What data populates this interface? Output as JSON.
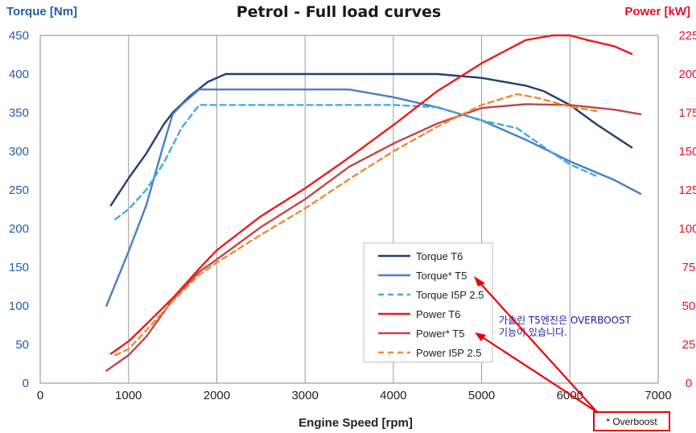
{
  "chart_data": {
    "type": "line",
    "title": "Petrol - Full load curves",
    "xlabel": "Engine Speed [rpm]",
    "ylabel_left": "Torque [Nm]",
    "ylabel_right": "Power [kW]",
    "xlim": [
      0,
      7000
    ],
    "ylim_left": [
      0,
      450
    ],
    "ylim_right": [
      0,
      225
    ],
    "x_ticks": [
      0,
      1000,
      2000,
      3000,
      4000,
      5000,
      6000,
      7000
    ],
    "y_left_ticks": [
      0,
      50,
      100,
      150,
      200,
      250,
      300,
      350,
      400,
      450
    ],
    "y_right_ticks": [
      0,
      25,
      50,
      75,
      100,
      125,
      150,
      175,
      200,
      225
    ],
    "grid": "vertical",
    "legend_position": "lower-center-right",
    "series": [
      {
        "name": "Torque T6",
        "axis": "left",
        "color": "#1f3f75",
        "dash": "solid",
        "x": [
          800,
          1000,
          1200,
          1400,
          1500,
          1700,
          1900,
          2100,
          3000,
          4000,
          4500,
          5000,
          5500,
          5700,
          6000,
          6300,
          6700
        ],
        "y": [
          230,
          265,
          297,
          335,
          350,
          372,
          390,
          400,
          400,
          400,
          400,
          395,
          385,
          378,
          360,
          335,
          305
        ]
      },
      {
        "name": "Torque* T5",
        "axis": "left",
        "color": "#4a7fc8",
        "dash": "solid",
        "x": [
          750,
          1000,
          1200,
          1400,
          1500,
          1600,
          1800,
          2000,
          3000,
          3500,
          4000,
          4500,
          5000,
          5500,
          6000,
          6500,
          6800
        ],
        "y": [
          100,
          170,
          230,
          310,
          348,
          360,
          380,
          380,
          380,
          380,
          370,
          357,
          340,
          315,
          287,
          263,
          245
        ]
      },
      {
        "name": "Torque I5P 2.5",
        "axis": "left",
        "color": "#44aadd",
        "dash": "dashed",
        "x": [
          850,
          1000,
          1200,
          1400,
          1600,
          1800,
          2000,
          3000,
          4000,
          4500,
          5000,
          5400,
          5800,
          6000,
          6300
        ],
        "y": [
          212,
          225,
          250,
          285,
          330,
          360,
          360,
          360,
          360,
          357,
          340,
          330,
          298,
          283,
          268
        ]
      },
      {
        "name": "Power T6",
        "axis": "right",
        "color": "#ee1a1a",
        "dash": "solid",
        "x": [
          800,
          1000,
          1200,
          1500,
          1800,
          2000,
          2500,
          3000,
          3500,
          4000,
          4500,
          5000,
          5500,
          5800,
          6000,
          6200,
          6500,
          6700
        ],
        "y": [
          19,
          27,
          38,
          55,
          74,
          86,
          108,
          126,
          146,
          167,
          189,
          207,
          222,
          225,
          225,
          222,
          218,
          213
        ]
      },
      {
        "name": "Power* T5",
        "axis": "right",
        "color": "#c0464a",
        "dash": "solid",
        "x": [
          750,
          1000,
          1200,
          1500,
          1800,
          2000,
          2500,
          3000,
          3500,
          4000,
          4500,
          5000,
          5500,
          6000,
          6500,
          6800
        ],
        "y": [
          8,
          18,
          30,
          54,
          72,
          80,
          101,
          119,
          140,
          155,
          168,
          178,
          180.5,
          180,
          177,
          174
        ]
      },
      {
        "name": "Power I5P 2.5",
        "axis": "right",
        "color": "#f08a30",
        "dash": "dashed",
        "x": [
          850,
          1000,
          1200,
          1500,
          1800,
          2000,
          2500,
          3000,
          3500,
          4000,
          4500,
          5000,
          5400,
          5600,
          5800,
          6000,
          6300
        ],
        "y": [
          18,
          22,
          34,
          53,
          70,
          78,
          96,
          113,
          132,
          150,
          166,
          180,
          187,
          185,
          182,
          179,
          176
        ]
      }
    ]
  },
  "annotations": {
    "korean_note_line1": "가솔린 T5엔진은 OVERBOOST",
    "korean_note_line2": "기능이 있습니다.",
    "overboost_label": "* Overboost"
  },
  "colors": {
    "left_axis": "#1f5fa8",
    "right_axis": "#e8102a",
    "callout": "#ee0000",
    "note_text": "#1a1aa8"
  }
}
